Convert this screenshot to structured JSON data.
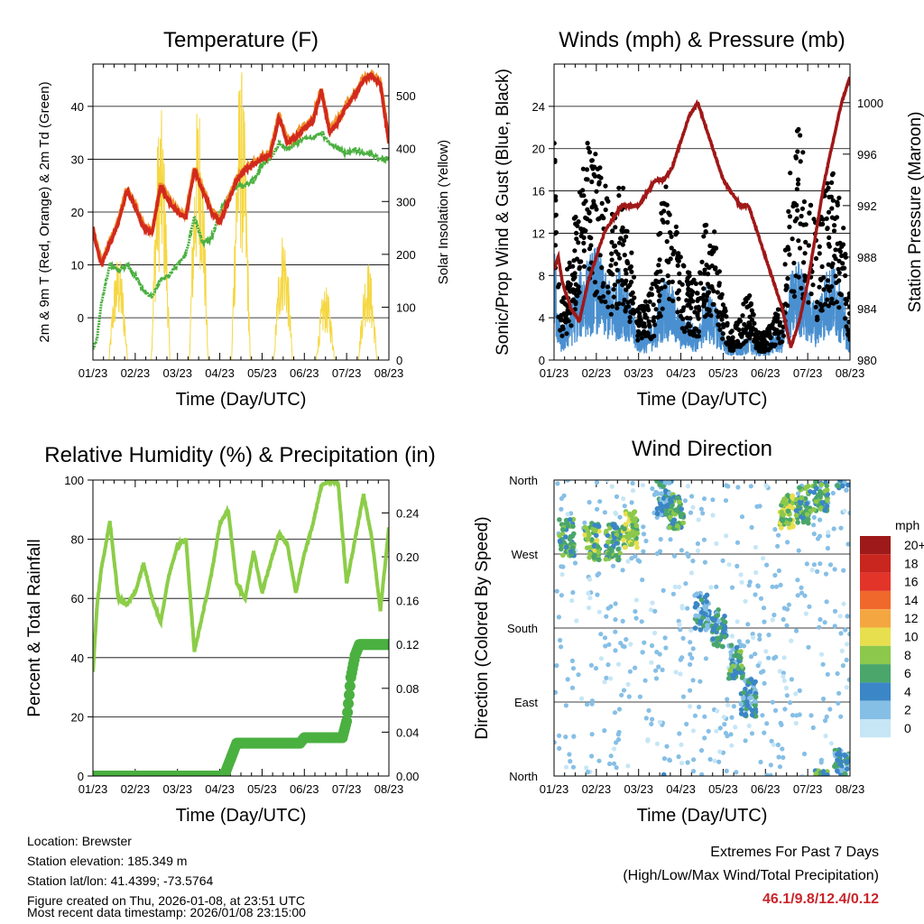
{
  "x_ticks": [
    "01/23",
    "02/23",
    "03/23",
    "04/23",
    "05/23",
    "06/23",
    "07/23",
    "08/23"
  ],
  "xlabel": "Time (Day/UTC)",
  "chart_data": [
    {
      "id": "temperature",
      "type": "line",
      "title": "Temperature (F)",
      "ylabel": "2m & 9m T (Red, Orange) & 2m Td (Green)",
      "y2label": "Solar Insolation (Yellow)",
      "ylim": [
        -8,
        48
      ],
      "y_ticks": [
        0,
        10,
        20,
        30,
        40
      ],
      "y2lim": [
        0,
        560
      ],
      "y2_ticks": [
        0,
        100,
        200,
        300,
        400,
        500
      ],
      "x": [
        0,
        0.1,
        0.2,
        0.4,
        0.6,
        0.8,
        1.0,
        1.2,
        1.4,
        1.6,
        1.8,
        2.0,
        2.2,
        2.4,
        2.6,
        2.8,
        3.0,
        3.2,
        3.4,
        3.6,
        3.8,
        4.0,
        4.2,
        4.4,
        4.6,
        4.8,
        5.0,
        5.2,
        5.4,
        5.6,
        5.8,
        6.0,
        6.2,
        6.4,
        6.6,
        6.8,
        7.0
      ],
      "series": [
        {
          "name": "2m T",
          "color": "#d22a1e",
          "values": [
            17,
            13,
            10,
            14,
            18,
            24,
            21,
            17,
            16,
            25,
            22,
            20,
            19,
            28,
            24,
            20,
            18,
            22,
            26,
            28,
            29,
            30,
            31,
            38,
            33,
            34,
            36,
            37,
            43,
            35,
            37,
            40,
            42,
            45,
            46,
            44,
            33
          ]
        },
        {
          "name": "9m T",
          "color": "#f0922a",
          "values": [
            17,
            13.4,
            10.4,
            14.4,
            18.4,
            24.4,
            21.4,
            17.4,
            16.4,
            25.4,
            22.4,
            20.4,
            19.4,
            28.4,
            24.4,
            20.4,
            18.4,
            22.4,
            26.4,
            28.4,
            29.4,
            30.4,
            31.4,
            38.4,
            33.4,
            34.4,
            36.4,
            37.4,
            43.4,
            35.4,
            37.4,
            40.4,
            42.4,
            45.4,
            46.1,
            44.4,
            33.4
          ]
        },
        {
          "name": "2m Td",
          "color": "#4ab040",
          "values": [
            -6,
            -4,
            3,
            10,
            9,
            10,
            8,
            5,
            4,
            7,
            8,
            10,
            12,
            19,
            14,
            15,
            20,
            23,
            25,
            25,
            26,
            29,
            30,
            33,
            32,
            33,
            34,
            34,
            35,
            33,
            32,
            31,
            32,
            31,
            31,
            30,
            30
          ]
        },
        {
          "name": "Solar Insolation",
          "color": "#f5d742",
          "peaks_day": [
            0.6,
            1.6,
            2.5,
            3.5,
            4.5,
            5.5,
            6.5
          ],
          "peaks_value": [
            200,
            480,
            500,
            560,
            250,
            140,
            190
          ]
        }
      ]
    },
    {
      "id": "winds",
      "type": "line",
      "title": "Winds (mph) & Pressure (mb)",
      "ylabel": "Sonic/Prop Wind & Gust (Blue, Black)",
      "y2label": "Station Pressure (Maroon)",
      "ylim": [
        0,
        28
      ],
      "y_ticks": [
        0,
        4,
        8,
        12,
        16,
        20,
        24
      ],
      "y2lim": [
        980,
        1003
      ],
      "y2_ticks": [
        980,
        984,
        988,
        992,
        996,
        1000
      ],
      "x": [
        0,
        0.1,
        0.2,
        0.4,
        0.6,
        0.8,
        1.0,
        1.2,
        1.4,
        1.6,
        1.8,
        2.0,
        2.2,
        2.4,
        2.6,
        2.8,
        3.0,
        3.2,
        3.4,
        3.6,
        3.8,
        4.0,
        4.2,
        4.4,
        4.6,
        4.8,
        5.0,
        5.2,
        5.4,
        5.6,
        5.8,
        6.0,
        6.2,
        6.4,
        6.6,
        6.8,
        7.0
      ],
      "series": [
        {
          "name": "Sonic/Prop Wind",
          "color": "#4a90d0",
          "values": [
            9,
            3,
            2,
            4,
            6,
            7,
            8,
            6,
            5,
            7,
            4,
            2,
            2,
            3,
            6,
            5,
            3,
            3,
            2,
            5,
            4,
            2,
            1,
            1,
            2,
            1,
            1,
            2,
            2,
            6,
            7,
            5,
            4,
            6,
            7,
            5,
            2
          ]
        },
        {
          "name": "Gust",
          "color": "#000000",
          "values": [
            16,
            6,
            4,
            8,
            12,
            15,
            14,
            12,
            10,
            13,
            8,
            4,
            4,
            6,
            13,
            11,
            7,
            6,
            5,
            10,
            9,
            4,
            2,
            3,
            5,
            2,
            2,
            3,
            4,
            14,
            16,
            12,
            9,
            12,
            13,
            11,
            4
          ]
        },
        {
          "name": "Station Pressure",
          "color": "#a01818",
          "values": [
            987,
            988,
            986,
            984,
            983,
            986,
            988,
            990,
            991,
            992,
            992,
            992,
            993,
            994,
            994,
            995,
            997,
            999,
            1000,
            998,
            996,
            994,
            993,
            992,
            992,
            990,
            988,
            986,
            984,
            981,
            983,
            986,
            990,
            994,
            997,
            1000,
            1002
          ]
        }
      ]
    },
    {
      "id": "humidity",
      "type": "line",
      "title": "Relative Humidity (%) & Precipitation (in)",
      "ylabel": "Percent & Total Rainfall",
      "ylim": [
        0,
        100
      ],
      "y_ticks": [
        0,
        20,
        40,
        60,
        80,
        100
      ],
      "y2lim": [
        0,
        0.27
      ],
      "y2_ticks": [
        "0.00",
        "0.04",
        "0.08",
        "0.12",
        "0.16",
        "0.20",
        "0.24"
      ],
      "x": [
        0,
        0.1,
        0.2,
        0.4,
        0.6,
        0.8,
        1.0,
        1.2,
        1.4,
        1.6,
        1.8,
        2.0,
        2.2,
        2.4,
        2.6,
        2.8,
        3.0,
        3.2,
        3.4,
        3.6,
        3.8,
        4.0,
        4.2,
        4.4,
        4.6,
        4.8,
        5.0,
        5.2,
        5.4,
        5.6,
        5.8,
        6.0,
        6.2,
        6.4,
        6.6,
        6.8,
        7.0
      ],
      "series": [
        {
          "name": "Relative Humidity",
          "color": "#8ccd48",
          "values": [
            35,
            58,
            70,
            86,
            60,
            58,
            62,
            72,
            60,
            52,
            68,
            78,
            80,
            42,
            55,
            68,
            85,
            90,
            65,
            60,
            76,
            62,
            72,
            82,
            78,
            62,
            75,
            85,
            98,
            100,
            99,
            65,
            80,
            95,
            80,
            56,
            84
          ]
        },
        {
          "name": "Total Precipitation",
          "color": "#4ab040",
          "x": [
            0,
            3.1,
            3.4,
            4.9,
            5.0,
            5.9,
            6.0,
            6.1,
            6.2,
            6.3,
            7.0
          ],
          "values": [
            0,
            0,
            0.03,
            0.03,
            0.035,
            0.035,
            0.05,
            0.09,
            0.11,
            0.12,
            0.12
          ]
        }
      ]
    },
    {
      "id": "direction",
      "type": "scatter",
      "title": "Wind Direction",
      "ylabel": "Direction (Colored By Speed)",
      "y_ticks": [
        "North",
        "East",
        "South",
        "West",
        "North"
      ],
      "legend_title": "mph",
      "legend_labels": [
        "20+",
        "18",
        "16",
        "14",
        "12",
        "10",
        "8",
        "6",
        "4",
        "2",
        "0"
      ],
      "legend_colors": [
        "#9e1a1a",
        "#c8261e",
        "#e3342a",
        "#f0682c",
        "#f4a640",
        "#e8df4e",
        "#8cc84c",
        "#4aa66a",
        "#3b86c6",
        "#86bfe6",
        "#c6e6f6"
      ],
      "clusters": [
        {
          "day": 0.3,
          "dir_deg": 290,
          "speed": 6
        },
        {
          "day": 0.9,
          "dir_deg": 285,
          "speed": 7
        },
        {
          "day": 1.4,
          "dir_deg": 285,
          "speed": 6
        },
        {
          "day": 1.8,
          "dir_deg": 300,
          "speed": 8
        },
        {
          "day": 2.6,
          "dir_deg": 340,
          "speed": 4
        },
        {
          "day": 2.9,
          "dir_deg": 320,
          "speed": 6
        },
        {
          "day": 3.5,
          "dir_deg": 200,
          "speed": 3
        },
        {
          "day": 3.9,
          "dir_deg": 180,
          "speed": 5
        },
        {
          "day": 4.3,
          "dir_deg": 140,
          "speed": 5
        },
        {
          "day": 4.6,
          "dir_deg": 95,
          "speed": 4
        },
        {
          "day": 5.5,
          "dir_deg": 320,
          "speed": 8
        },
        {
          "day": 5.9,
          "dir_deg": 330,
          "speed": 6
        },
        {
          "day": 6.3,
          "dir_deg": 345,
          "speed": 6
        },
        {
          "day": 6.8,
          "dir_deg": 10,
          "speed": 4
        }
      ]
    }
  ],
  "info": {
    "location": "Location: Brewster",
    "elevation": "Station elevation: 185.349 m",
    "latlon": "Station lat/lon: 41.4399; -73.5764",
    "created": "Figure created on Thu, 2026-01-08, at 23:51 UTC",
    "recent": "Most recent data timestamp: 2026/01/08 23:15:00"
  },
  "extremes": {
    "title": "Extremes For Past 7 Days",
    "subtitle": "(High/Low/Max Wind/Total Precipitation)",
    "values": "46.1/9.8/12.4/0.12",
    "values_color": "#c8262c"
  }
}
